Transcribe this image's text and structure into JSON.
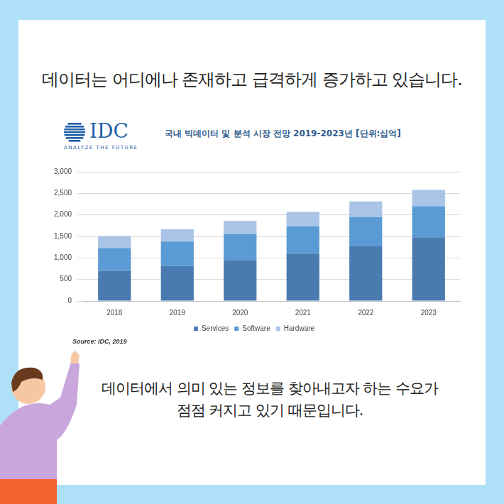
{
  "headline": "데이터는 어디에나 존재하고 급격하게 증가하고 있습니다.",
  "logo": {
    "name": "IDC",
    "tagline": "ANALYZE THE FUTURE"
  },
  "source": "Source: IDC, 2019",
  "caption": [
    "데이터에서 의미 있는 정보를 찾아내고자 하는 수요가",
    "점점 커지고 있기 때문입니다."
  ],
  "chart_data": {
    "type": "bar",
    "title": "국내 빅데이터 및 분석 시장 전망 2019-2023년 [단위:십억]",
    "categories": [
      "2018",
      "2019",
      "2020",
      "2021",
      "2022",
      "2023"
    ],
    "series": [
      {
        "name": "Services",
        "color": "#4a7bb0",
        "values": [
          700,
          810,
          950,
          1100,
          1270,
          1480
        ]
      },
      {
        "name": "Software",
        "color": "#5b9bd5",
        "values": [
          530,
          570,
          600,
          630,
          680,
          720
        ]
      },
      {
        "name": "Hardware",
        "color": "#a9c4e6",
        "values": [
          280,
          290,
          310,
          340,
          360,
          380
        ]
      }
    ],
    "stacked": true,
    "ylim": [
      0,
      3000
    ],
    "yticks": [
      0,
      500,
      {
        "value": 1000,
        "label": "1,000"
      },
      {
        "value": 1500,
        "label": "1,500"
      },
      {
        "value": 2000,
        "label": "2,000"
      },
      {
        "value": 2500,
        "label": "2,500"
      },
      {
        "value": 3000,
        "label": "3,000"
      }
    ],
    "grid": true,
    "legend": "bottom"
  }
}
